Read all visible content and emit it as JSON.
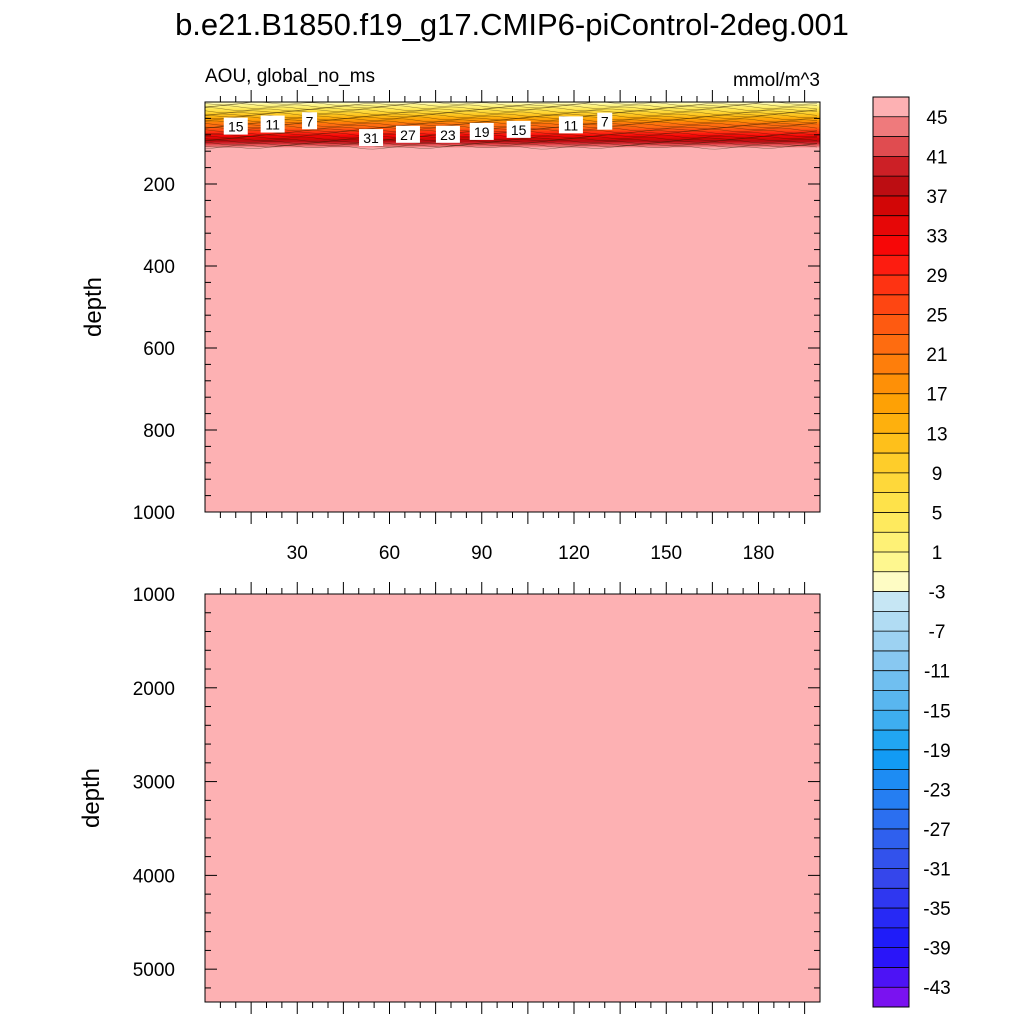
{
  "chart_data": {
    "type": "contour",
    "title": "b.e21.B1850.f19_g17.CMIP6-piControl-2deg.001",
    "subtitle_left": "AOU, global_no_ms",
    "subtitle_right": "mmol/m^3",
    "background_color": "#fdb1b3",
    "panels": [
      {
        "id": "upper",
        "ylabel": "depth",
        "ylim": [
          0,
          1000
        ],
        "yticks": [
          "200",
          "400",
          "600",
          "800",
          "1000"
        ],
        "xlim": [
          0,
          200
        ],
        "xticks": [
          "30",
          "60",
          "90",
          "120",
          "150",
          "180"
        ],
        "surface_layer": {
          "top_depth": 0,
          "bottom_depth": 115
        },
        "contour_labels": [
          {
            "text": "15",
            "x": 10,
            "depth": 60
          },
          {
            "text": "11",
            "x": 22,
            "depth": 55
          },
          {
            "text": "7",
            "x": 34,
            "depth": 47
          },
          {
            "text": "31",
            "x": 54,
            "depth": 88
          },
          {
            "text": "27",
            "x": 66,
            "depth": 80
          },
          {
            "text": "23",
            "x": 79,
            "depth": 80
          },
          {
            "text": "19",
            "x": 90,
            "depth": 73
          },
          {
            "text": "15",
            "x": 102,
            "depth": 68
          },
          {
            "text": "11",
            "x": 119,
            "depth": 57
          },
          {
            "text": "7",
            "x": 130,
            "depth": 48
          }
        ]
      },
      {
        "id": "lower",
        "ylabel": "depth",
        "ylim": [
          1000,
          5350
        ],
        "yticks": [
          "1000",
          "2000",
          "3000",
          "4000",
          "5000"
        ],
        "xlim": [
          0,
          200
        ]
      }
    ],
    "colorbar": {
      "labels": [
        "45",
        "41",
        "37",
        "33",
        "29",
        "25",
        "21",
        "17",
        "13",
        "9",
        "5",
        "1",
        "-3",
        "-7",
        "-11",
        "-15",
        "-19",
        "-23",
        "-27",
        "-31",
        "-35",
        "-39",
        "-43"
      ],
      "colors": [
        "#fdb1b3",
        "#ef7a7c",
        "#e04c50",
        "#cc2026",
        "#bc0d12",
        "#d20606",
        "#e60707",
        "#f70707",
        "#fd1c10",
        "#fe3312",
        "#fe4612",
        "#fe5a11",
        "#fe6c10",
        "#fe7e0b",
        "#fe9007",
        "#fea105",
        "#feb00d",
        "#fec01b",
        "#fecd2a",
        "#fed83a",
        "#fee24a",
        "#feea5e",
        "#fef176",
        "#fef78f",
        "#fefcc4",
        "#c6e6f4",
        "#b1dcf3",
        "#9dd2f2",
        "#88c8f1",
        "#70bff0",
        "#59b6ef",
        "#3eaef0",
        "#21a6f2",
        "#129bf4",
        "#1d8cf3",
        "#257ef2",
        "#2b6ff0",
        "#2f60ee",
        "#3252ec",
        "#3546eb",
        "#2f37f0",
        "#2729f5",
        "#1f1cf9",
        "#2a15f9",
        "#4d13f5",
        "#7a12f0"
      ]
    }
  }
}
